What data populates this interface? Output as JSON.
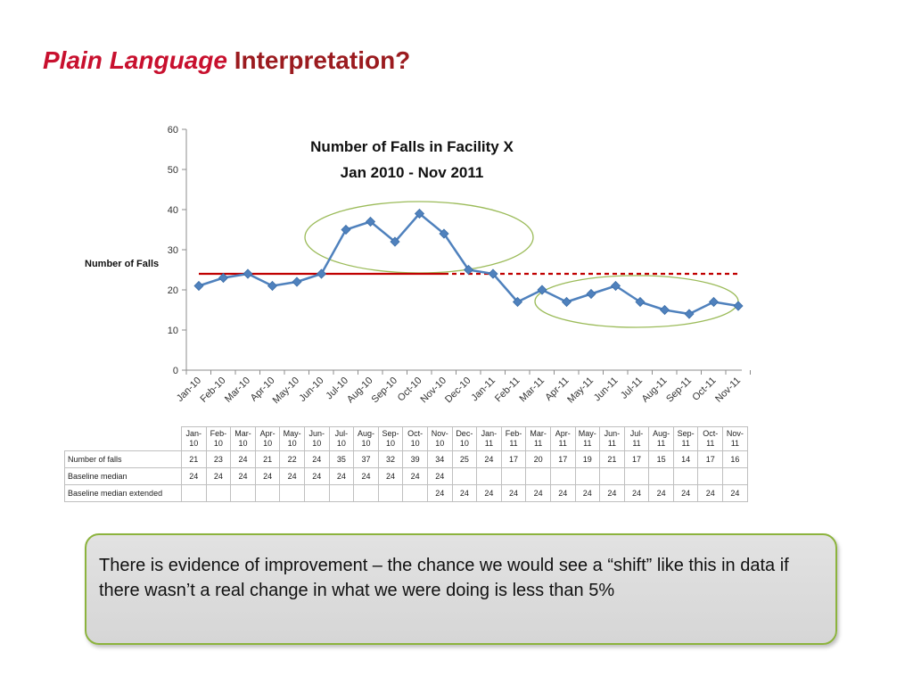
{
  "slide": {
    "title_italic": "Plain Language",
    "title_rest": "Interpretation?",
    "callout": "There is evidence of improvement – the chance we would see a “shift” like this in data if there wasn’t a real change in what we were doing is less than 5%"
  },
  "colors": {
    "title": "#9b1b1f",
    "series": "#4f81bd",
    "baseline": "#c00000",
    "ellipse": "#9bbb59",
    "callout_border": "#8cb33d"
  },
  "chart_data": {
    "type": "line",
    "title": "Number of Falls in Facility X",
    "subtitle": "Jan 2010 - Nov 2011",
    "ylabel": "Number of Falls",
    "xlabel": "",
    "ylim": [
      0,
      60
    ],
    "yticks": [
      0,
      10,
      20,
      30,
      40,
      50,
      60
    ],
    "grid": false,
    "categories": [
      "Jan-10",
      "Feb-10",
      "Mar-10",
      "Apr-10",
      "May-10",
      "Jun-10",
      "Jul-10",
      "Aug-10",
      "Sep-10",
      "Oct-10",
      "Nov-10",
      "Dec-10",
      "Jan-11",
      "Feb-11",
      "Mar-11",
      "Apr-11",
      "May-11",
      "Jun-11",
      "Jul-11",
      "Aug-11",
      "Sep-11",
      "Oct-11",
      "Nov-11"
    ],
    "table_headers": [
      [
        "Jan-",
        "10"
      ],
      [
        "Feb-",
        "10"
      ],
      [
        "Mar-",
        "10"
      ],
      [
        "Apr-",
        "10"
      ],
      [
        "May-",
        "10"
      ],
      [
        "Jun-",
        "10"
      ],
      [
        "Jul-",
        "10"
      ],
      [
        "Aug-",
        "10"
      ],
      [
        "Sep-",
        "10"
      ],
      [
        "Oct-",
        "10"
      ],
      [
        "Nov-",
        "10"
      ],
      [
        "Dec-",
        "10"
      ],
      [
        "Jan-",
        "11"
      ],
      [
        "Feb-",
        "11"
      ],
      [
        "Mar-",
        "11"
      ],
      [
        "Apr-",
        "11"
      ],
      [
        "May-",
        "11"
      ],
      [
        "Jun-",
        "11"
      ],
      [
        "Jul-",
        "11"
      ],
      [
        "Aug-",
        "11"
      ],
      [
        "Sep-",
        "11"
      ],
      [
        "Oct-",
        "11"
      ],
      [
        "Nov-",
        "11"
      ]
    ],
    "series": [
      {
        "name": "Number of falls",
        "style": "line-diamond",
        "values": [
          21,
          23,
          24,
          21,
          22,
          24,
          35,
          37,
          32,
          39,
          34,
          25,
          24,
          17,
          20,
          17,
          19,
          21,
          17,
          15,
          14,
          17,
          16
        ]
      },
      {
        "name": "Baseline median",
        "style": "solid",
        "values": [
          24,
          24,
          24,
          24,
          24,
          24,
          24,
          24,
          24,
          24,
          24,
          null,
          null,
          null,
          null,
          null,
          null,
          null,
          null,
          null,
          null,
          null,
          null
        ]
      },
      {
        "name": "Baseline median extended",
        "style": "dashed",
        "values": [
          null,
          null,
          null,
          null,
          null,
          null,
          null,
          null,
          null,
          null,
          24,
          24,
          24,
          24,
          24,
          24,
          24,
          24,
          24,
          24,
          24,
          24,
          24
        ]
      }
    ]
  }
}
